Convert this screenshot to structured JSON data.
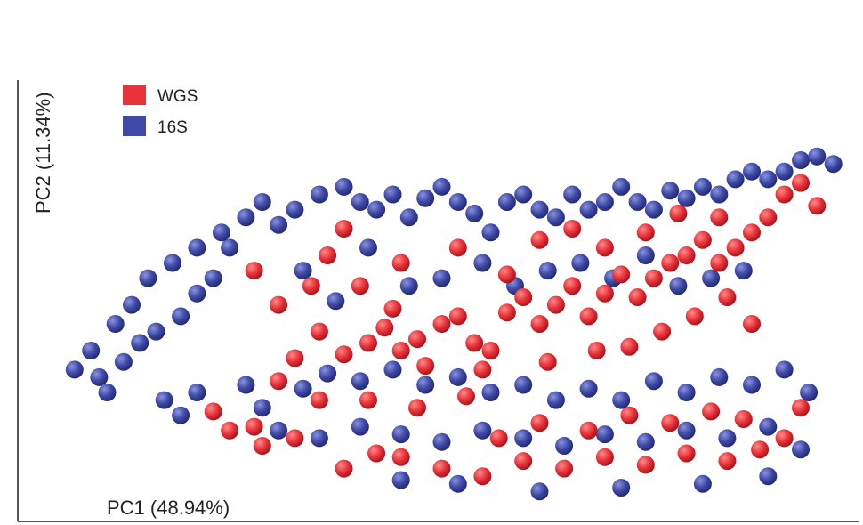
{
  "chart_data": {
    "type": "scatter",
    "title": "",
    "xlabel": "PC1 (48.94%)",
    "ylabel": "PC2 (11.34%)",
    "xlim": [
      0,
      100
    ],
    "ylim": [
      0,
      100
    ],
    "grid": false,
    "legend_position": "top-left",
    "series": [
      {
        "name": "WGS",
        "color": "#e8333a",
        "points": [
          [
            22,
            27
          ],
          [
            24,
            22
          ],
          [
            27,
            23
          ],
          [
            30,
            35
          ],
          [
            32,
            41
          ],
          [
            35,
            48
          ],
          [
            38,
            42
          ],
          [
            41,
            45
          ],
          [
            43,
            49
          ],
          [
            45,
            43
          ],
          [
            47,
            46
          ],
          [
            50,
            50
          ],
          [
            52,
            52
          ],
          [
            54,
            45
          ],
          [
            56,
            43
          ],
          [
            58,
            53
          ],
          [
            60,
            57
          ],
          [
            62,
            50
          ],
          [
            64,
            55
          ],
          [
            66,
            60
          ],
          [
            68,
            52
          ],
          [
            70,
            58
          ],
          [
            72,
            63
          ],
          [
            74,
            57
          ],
          [
            76,
            62
          ],
          [
            78,
            66
          ],
          [
            80,
            68
          ],
          [
            82,
            72
          ],
          [
            84,
            66
          ],
          [
            86,
            70
          ],
          [
            88,
            74
          ],
          [
            90,
            78
          ],
          [
            92,
            84
          ],
          [
            94,
            87
          ],
          [
            96,
            81
          ],
          [
            40,
            60
          ],
          [
            45,
            66
          ],
          [
            52,
            70
          ],
          [
            58,
            63
          ],
          [
            62,
            72
          ],
          [
            66,
            75
          ],
          [
            70,
            70
          ],
          [
            75,
            74
          ],
          [
            79,
            79
          ],
          [
            84,
            78
          ],
          [
            34,
            60
          ],
          [
            38,
            75
          ],
          [
            27,
            64
          ],
          [
            36,
            68
          ],
          [
            30,
            55
          ],
          [
            44,
            54
          ],
          [
            48,
            39
          ],
          [
            55,
            38
          ],
          [
            63,
            40
          ],
          [
            69,
            43
          ],
          [
            73,
            44
          ],
          [
            77,
            48
          ],
          [
            81,
            52
          ],
          [
            85,
            57
          ],
          [
            88,
            50
          ],
          [
            60,
            14
          ],
          [
            65,
            12
          ],
          [
            70,
            15
          ],
          [
            75,
            13
          ],
          [
            80,
            16
          ],
          [
            85,
            14
          ],
          [
            89,
            17
          ],
          [
            50,
            12
          ],
          [
            45,
            15
          ],
          [
            55,
            10
          ],
          [
            32,
            20
          ],
          [
            28,
            18
          ],
          [
            38,
            12
          ],
          [
            42,
            16
          ],
          [
            92,
            20
          ],
          [
            94,
            28
          ],
          [
            57,
            20
          ],
          [
            62,
            24
          ],
          [
            68,
            22
          ],
          [
            73,
            26
          ],
          [
            78,
            24
          ],
          [
            83,
            27
          ],
          [
            87,
            25
          ],
          [
            35,
            30
          ],
          [
            41,
            30
          ],
          [
            47,
            28
          ],
          [
            53,
            31
          ]
        ]
      },
      {
        "name": "16S",
        "color": "#3f4aa6",
        "points": [
          [
            5,
            38
          ],
          [
            8,
            36
          ],
          [
            11,
            40
          ],
          [
            13,
            45
          ],
          [
            10,
            50
          ],
          [
            12,
            55
          ],
          [
            15,
            48
          ],
          [
            18,
            52
          ],
          [
            20,
            58
          ],
          [
            22,
            62
          ],
          [
            24,
            70
          ],
          [
            26,
            78
          ],
          [
            28,
            82
          ],
          [
            30,
            76
          ],
          [
            32,
            80
          ],
          [
            35,
            84
          ],
          [
            38,
            86
          ],
          [
            40,
            82
          ],
          [
            42,
            80
          ],
          [
            44,
            84
          ],
          [
            46,
            78
          ],
          [
            48,
            83
          ],
          [
            50,
            86
          ],
          [
            52,
            82
          ],
          [
            54,
            79
          ],
          [
            56,
            74
          ],
          [
            58,
            82
          ],
          [
            60,
            84
          ],
          [
            62,
            80
          ],
          [
            64,
            78
          ],
          [
            66,
            84
          ],
          [
            68,
            80
          ],
          [
            70,
            82
          ],
          [
            72,
            86
          ],
          [
            74,
            82
          ],
          [
            76,
            80
          ],
          [
            78,
            85
          ],
          [
            80,
            83
          ],
          [
            82,
            86
          ],
          [
            84,
            84
          ],
          [
            86,
            88
          ],
          [
            88,
            90
          ],
          [
            90,
            88
          ],
          [
            92,
            90
          ],
          [
            94,
            93
          ],
          [
            96,
            94
          ],
          [
            98,
            92
          ],
          [
            16,
            30
          ],
          [
            18,
            26
          ],
          [
            20,
            32
          ],
          [
            26,
            34
          ],
          [
            28,
            28
          ],
          [
            33,
            33
          ],
          [
            36,
            37
          ],
          [
            40,
            35
          ],
          [
            44,
            38
          ],
          [
            48,
            34
          ],
          [
            52,
            36
          ],
          [
            56,
            32
          ],
          [
            60,
            34
          ],
          [
            64,
            30
          ],
          [
            68,
            33
          ],
          [
            72,
            30
          ],
          [
            76,
            35
          ],
          [
            80,
            32
          ],
          [
            84,
            36
          ],
          [
            88,
            34
          ],
          [
            92,
            38
          ],
          [
            95,
            32
          ],
          [
            14,
            62
          ],
          [
            17,
            66
          ],
          [
            20,
            70
          ],
          [
            23,
            74
          ],
          [
            33,
            64
          ],
          [
            37,
            56
          ],
          [
            41,
            70
          ],
          [
            46,
            60
          ],
          [
            50,
            62
          ],
          [
            55,
            66
          ],
          [
            59,
            60
          ],
          [
            63,
            64
          ],
          [
            67,
            66
          ],
          [
            71,
            62
          ],
          [
            75,
            68
          ],
          [
            79,
            60
          ],
          [
            83,
            62
          ],
          [
            87,
            64
          ],
          [
            30,
            22
          ],
          [
            35,
            20
          ],
          [
            40,
            23
          ],
          [
            45,
            21
          ],
          [
            50,
            19
          ],
          [
            55,
            22
          ],
          [
            60,
            20
          ],
          [
            65,
            18
          ],
          [
            70,
            21
          ],
          [
            75,
            19
          ],
          [
            80,
            22
          ],
          [
            85,
            20
          ],
          [
            90,
            23
          ],
          [
            94,
            17
          ],
          [
            9,
            32
          ],
          [
            7,
            43
          ],
          [
            52,
            8
          ],
          [
            62,
            6
          ],
          [
            72,
            7
          ],
          [
            82,
            8
          ],
          [
            45,
            9
          ],
          [
            90,
            10
          ]
        ]
      }
    ]
  }
}
